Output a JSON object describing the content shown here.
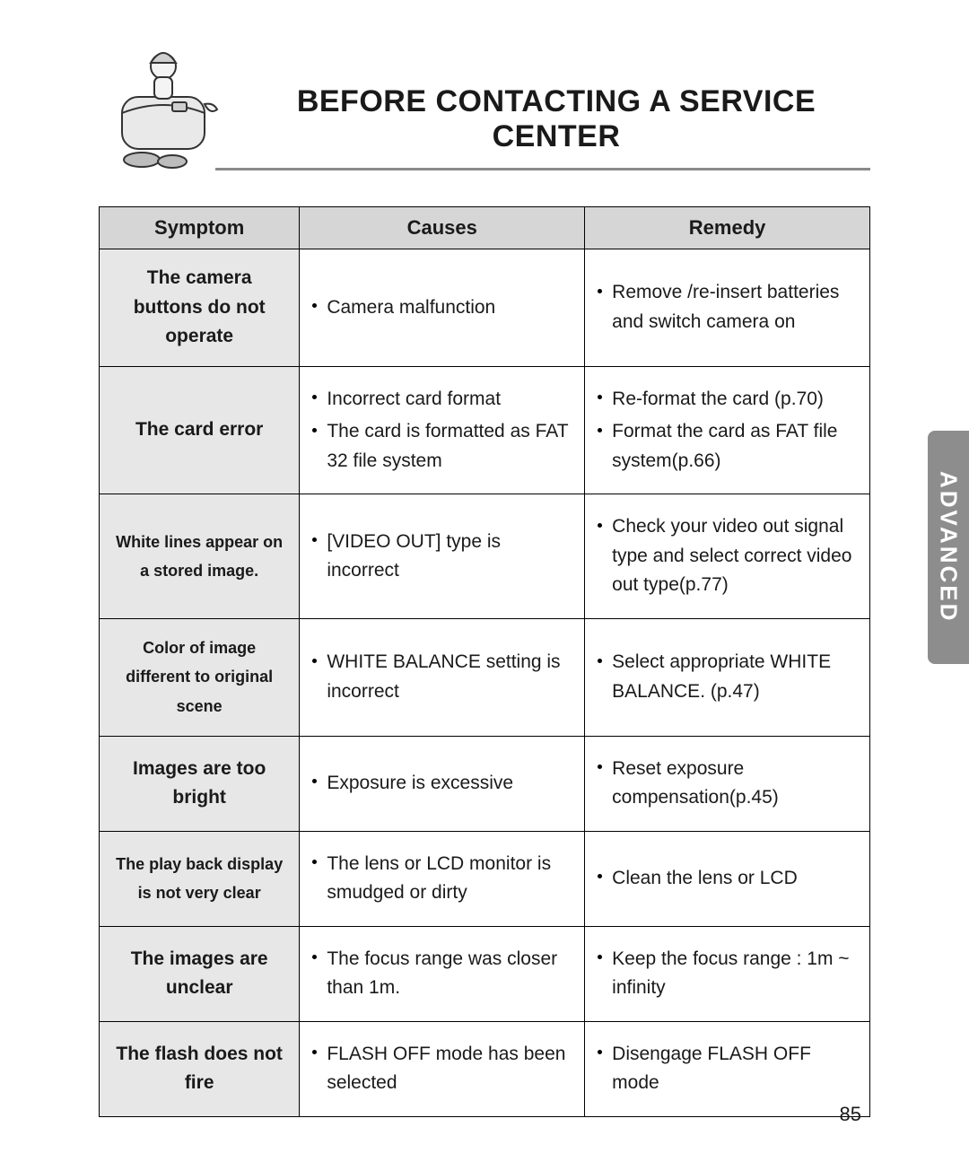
{
  "title": "BEFORE CONTACTING A SERVICE CENTER",
  "side_tab": "ADVANCED",
  "page_number": "85",
  "columns": {
    "symptom": "Symptom",
    "causes": "Causes",
    "remedy": "Remedy"
  },
  "rows": [
    {
      "symptom": "The camera buttons do not operate",
      "symClass": "sym-b",
      "causes": [
        "Camera malfunction"
      ],
      "remedy": [
        "Remove /re-insert batteries and switch camera on"
      ]
    },
    {
      "symptom": "The card error",
      "symClass": "sym-b",
      "causes": [
        "Incorrect card format",
        "The card is formatted as FAT 32 file system"
      ],
      "remedy": [
        "Re-format the card (p.70)",
        "Format the card as FAT file system(p.66)"
      ]
    },
    {
      "symptom": "White lines appear on a stored image.",
      "symClass": "sym-s",
      "causes": [
        "[VIDEO OUT] type is incorrect"
      ],
      "remedy": [
        "Check your video out signal type and select correct video out type(p.77)"
      ]
    },
    {
      "symptom": "Color of image different to original scene",
      "symClass": "sym-s",
      "causes": [
        "WHITE BALANCE setting is incorrect"
      ],
      "remedy": [
        "Select appropriate WHITE BALANCE. (p.47)"
      ]
    },
    {
      "symptom": "Images are too bright",
      "symClass": "sym-b",
      "causes": [
        "Exposure is excessive"
      ],
      "remedy": [
        "Reset exposure compensation(p.45)"
      ]
    },
    {
      "symptom": "The play back display is not very clear",
      "symClass": "sym-s",
      "causes": [
        "The lens or LCD monitor is smudged or dirty"
      ],
      "remedy": [
        "Clean the lens or LCD"
      ]
    },
    {
      "symptom": "The images are unclear",
      "symClass": "sym-b",
      "causes": [
        "The focus range was closer than 1m."
      ],
      "remedy": [
        "Keep the focus range : 1m ~ infinity"
      ]
    },
    {
      "symptom": "The flash does not fire",
      "symClass": "sym-b",
      "causes": [
        "FLASH OFF mode has been selected"
      ],
      "remedy": [
        "Disengage FLASH OFF mode"
      ]
    }
  ]
}
